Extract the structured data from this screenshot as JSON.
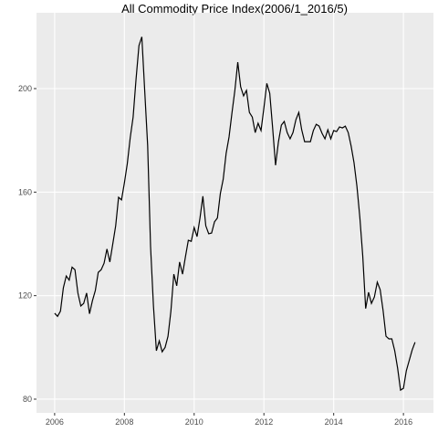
{
  "chart_data": {
    "type": "line",
    "title": "All Commodity Price Index(2006/1_2016/5)",
    "x": [
      2006,
      2006.083,
      2006.167,
      2006.25,
      2006.333,
      2006.417,
      2006.5,
      2006.583,
      2006.667,
      2006.75,
      2006.833,
      2006.917,
      2007,
      2007.083,
      2007.167,
      2007.25,
      2007.333,
      2007.417,
      2007.5,
      2007.583,
      2007.667,
      2007.75,
      2007.833,
      2007.917,
      2008,
      2008.083,
      2008.167,
      2008.25,
      2008.333,
      2008.417,
      2008.5,
      2008.583,
      2008.667,
      2008.75,
      2008.833,
      2008.917,
      2009,
      2009.083,
      2009.167,
      2009.25,
      2009.333,
      2009.417,
      2009.5,
      2009.583,
      2009.667,
      2009.75,
      2009.833,
      2009.917,
      2010,
      2010.083,
      2010.167,
      2010.25,
      2010.333,
      2010.417,
      2010.5,
      2010.583,
      2010.667,
      2010.75,
      2010.833,
      2010.917,
      2011,
      2011.083,
      2011.167,
      2011.25,
      2011.333,
      2011.417,
      2011.5,
      2011.583,
      2011.667,
      2011.75,
      2011.833,
      2011.917,
      2012,
      2012.083,
      2012.167,
      2012.25,
      2012.333,
      2012.417,
      2012.5,
      2012.583,
      2012.667,
      2012.75,
      2012.833,
      2012.917,
      2013,
      2013.083,
      2013.167,
      2013.25,
      2013.333,
      2013.417,
      2013.5,
      2013.583,
      2013.667,
      2013.75,
      2013.833,
      2013.917,
      2014,
      2014.083,
      2014.167,
      2014.25,
      2014.333,
      2014.417,
      2014.5,
      2014.583,
      2014.667,
      2014.75,
      2014.833,
      2014.917,
      2015,
      2015.083,
      2015.167,
      2015.25,
      2015.333,
      2015.417,
      2015.5,
      2015.583,
      2015.667,
      2015.75,
      2015.833,
      2015.917,
      2016,
      2016.083,
      2016.167,
      2016.25,
      2016.333
    ],
    "series": [
      {
        "color": "#000000",
        "values": [
          113.2,
          112,
          114,
          123,
          127.6,
          126,
          131,
          130,
          121,
          116,
          117,
          121,
          113,
          118,
          122,
          129,
          130,
          132.5,
          138,
          133,
          140,
          147,
          158,
          157,
          163.6,
          171,
          181,
          189,
          203.5,
          216.6,
          220,
          199,
          178,
          139,
          116,
          98.7,
          102.5,
          98.3,
          100,
          104.3,
          114,
          128.3,
          123.8,
          133,
          128.3,
          135,
          141.4,
          141,
          146.3,
          142.8,
          150,
          158.4,
          147,
          143.9,
          144.2,
          148.5,
          150,
          159.4,
          165,
          175,
          181.3,
          190.5,
          199.3,
          210.2,
          200.7,
          197.2,
          199.3,
          190.8,
          189,
          183,
          186.6,
          183.8,
          192.6,
          202,
          198.2,
          184.8,
          170.4,
          179.5,
          185.9,
          187.3,
          183,
          180.6,
          183,
          188,
          190.8,
          184.1,
          179.5,
          179.5,
          179.5,
          183.8,
          186.2,
          185.5,
          182.7,
          180.6,
          184.1,
          180.6,
          183.8,
          183.4,
          185.2,
          184.8,
          185.5,
          183,
          177.8,
          171.4,
          162.2,
          150.2,
          135.4,
          115,
          121.3,
          117,
          119.5,
          125.2,
          122.3,
          114.2,
          104.3,
          103.3,
          103.3,
          98.7,
          92,
          83.5,
          84.2,
          91,
          95,
          99,
          102
        ]
      }
    ],
    "xlim": [
      2005.48,
      2016.86
    ],
    "xticks": [
      2006,
      2008,
      2010,
      2012,
      2014,
      2016
    ],
    "ylim": [
      74.7,
      229.3
    ],
    "yticks": [
      80,
      120,
      160,
      200
    ],
    "grid": true
  }
}
